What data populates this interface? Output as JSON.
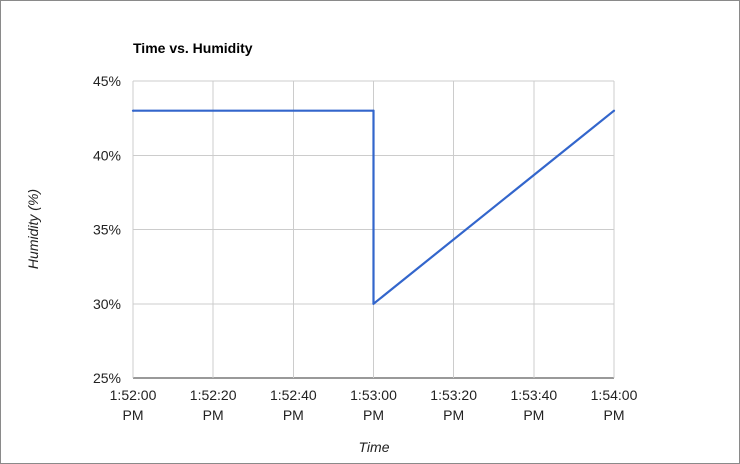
{
  "chart_data": {
    "type": "line",
    "title": "Time vs. Humidity",
    "xlabel": "Time",
    "ylabel": "Humidity (%)",
    "x_ticks": [
      [
        "1:52:00",
        "PM"
      ],
      [
        "1:52:20",
        "PM"
      ],
      [
        "1:52:40",
        "PM"
      ],
      [
        "1:53:00",
        "PM"
      ],
      [
        "1:53:20",
        "PM"
      ],
      [
        "1:53:40",
        "PM"
      ],
      [
        "1:54:00",
        "PM"
      ]
    ],
    "y_ticks": [
      "25%",
      "30%",
      "35%",
      "40%",
      "45%"
    ],
    "ylim": [
      25,
      45
    ],
    "xlim": [
      "1:52:00 PM",
      "1:54:00 PM"
    ],
    "grid": true,
    "legend": "none",
    "series": [
      {
        "color": "#3366cc",
        "x": [
          "1:52:00 PM",
          "1:53:00 PM",
          "1:53:00 PM",
          "1:54:00 PM"
        ],
        "y": [
          43,
          43,
          30,
          43
        ]
      }
    ]
  }
}
